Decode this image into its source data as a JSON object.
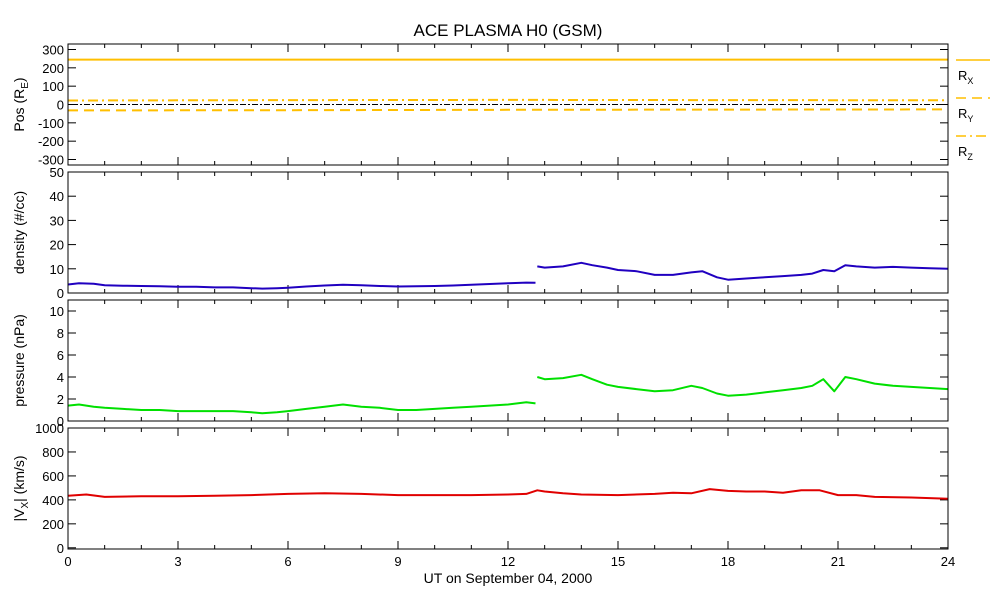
{
  "figure": {
    "title": "ACE PLASMA H0 (GSM)",
    "xlabel": "UT on September 04, 2000"
  },
  "chart_data": [
    {
      "type": "line",
      "panel": "position",
      "title": "ACE PLASMA H0 (GSM)",
      "ylabel": "Pos (R",
      "ylabel_sub": "E",
      "ylabel_tail": ")",
      "ylim": [
        -330,
        330
      ],
      "yticks": [
        -300,
        -200,
        -100,
        0,
        100,
        200,
        300
      ],
      "xlim": [
        0,
        24
      ],
      "zero_line": true,
      "series": [
        {
          "name": "R",
          "sub": "X",
          "color": "#ffbf00",
          "style": "solid",
          "x": [
            0,
            24
          ],
          "values": [
            245,
            245
          ]
        },
        {
          "name": "R",
          "sub": "Y",
          "color": "#ffbf00",
          "style": "dashed",
          "x": [
            0,
            6,
            12,
            18,
            24
          ],
          "values": [
            -32,
            -31,
            -29,
            -28,
            -27
          ]
        },
        {
          "name": "R",
          "sub": "Z",
          "color": "#ffbf00",
          "style": "dashdot",
          "x": [
            0,
            6,
            12,
            18,
            24
          ],
          "values": [
            22,
            24,
            25,
            24,
            23
          ]
        }
      ]
    },
    {
      "type": "line",
      "panel": "density",
      "ylabel": "density (#/cc)",
      "ylim": [
        0,
        50
      ],
      "yticks": [
        0,
        10,
        20,
        30,
        40,
        50
      ],
      "xlim": [
        0,
        24
      ],
      "series": [
        {
          "name": "density",
          "color": "#2000c0",
          "x": [
            0,
            0.3,
            0.7,
            1.0,
            1.5,
            2.0,
            2.5,
            3.0,
            3.5,
            4.0,
            4.5,
            5.0,
            5.3,
            5.7,
            6.0,
            6.5,
            7.0,
            7.5,
            8.0,
            8.5,
            9.0,
            9.5,
            10.0,
            10.5,
            11.0,
            11.5,
            12.0,
            12.5,
            12.75,
            12.8,
            13.0,
            13.5,
            14.0,
            14.3,
            14.7,
            15.0,
            15.5,
            16.0,
            16.5,
            17.0,
            17.3,
            17.7,
            18.0,
            18.5,
            19.0,
            19.5,
            20.0,
            20.3,
            20.6,
            20.9,
            21.2,
            21.5,
            22.0,
            22.5,
            23.0,
            23.5,
            24.0
          ],
          "values": [
            3.5,
            4.0,
            3.8,
            3.2,
            3.0,
            2.9,
            2.8,
            2.6,
            2.6,
            2.3,
            2.3,
            2.0,
            1.8,
            2.0,
            2.2,
            2.7,
            3.1,
            3.4,
            3.2,
            2.9,
            2.7,
            2.8,
            2.9,
            3.1,
            3.4,
            3.7,
            4.0,
            4.3,
            4.2,
            11.0,
            10.5,
            11.0,
            12.5,
            11.5,
            10.5,
            9.5,
            9.0,
            7.5,
            7.5,
            8.5,
            9.0,
            6.5,
            5.5,
            6.0,
            6.5,
            7.0,
            7.5,
            8.0,
            9.5,
            9.0,
            11.5,
            11.0,
            10.5,
            10.8,
            10.5,
            10.2,
            10.0
          ]
        }
      ]
    },
    {
      "type": "line",
      "panel": "pressure",
      "ylabel": "pressure (nPa)",
      "ylim": [
        0,
        11
      ],
      "yticks": [
        0,
        2,
        4,
        6,
        8,
        10
      ],
      "xlim": [
        0,
        24
      ],
      "series": [
        {
          "name": "pressure",
          "color": "#00e000",
          "x": [
            0,
            0.3,
            0.7,
            1.0,
            1.5,
            2.0,
            2.5,
            3.0,
            3.5,
            4.0,
            4.5,
            5.0,
            5.3,
            5.7,
            6.0,
            6.5,
            7.0,
            7.5,
            8.0,
            8.5,
            9.0,
            9.5,
            10.0,
            10.5,
            11.0,
            11.5,
            12.0,
            12.5,
            12.75,
            12.8,
            13.0,
            13.5,
            14.0,
            14.3,
            14.7,
            15.0,
            15.5,
            16.0,
            16.5,
            17.0,
            17.3,
            17.7,
            18.0,
            18.5,
            19.0,
            19.5,
            20.0,
            20.3,
            20.6,
            20.9,
            21.2,
            21.5,
            22.0,
            22.5,
            23.0,
            23.5,
            24.0
          ],
          "values": [
            1.4,
            1.5,
            1.3,
            1.2,
            1.1,
            1.0,
            1.0,
            0.9,
            0.9,
            0.9,
            0.9,
            0.8,
            0.7,
            0.8,
            0.9,
            1.1,
            1.3,
            1.5,
            1.3,
            1.2,
            1.0,
            1.0,
            1.1,
            1.2,
            1.3,
            1.4,
            1.5,
            1.7,
            1.6,
            4.0,
            3.8,
            3.9,
            4.2,
            3.8,
            3.3,
            3.1,
            2.9,
            2.7,
            2.8,
            3.2,
            3.0,
            2.5,
            2.3,
            2.4,
            2.6,
            2.8,
            3.0,
            3.2,
            3.8,
            2.7,
            4.0,
            3.8,
            3.4,
            3.2,
            3.1,
            3.0,
            2.9
          ]
        }
      ]
    },
    {
      "type": "line",
      "panel": "velocity",
      "ylabel": "|V",
      "ylabel_sub": "X",
      "ylabel_tail": "| (km/s)",
      "ylim": [
        -10,
        1000
      ],
      "yticks": [
        0,
        200,
        400,
        600,
        800,
        1000
      ],
      "xlim": [
        0,
        24
      ],
      "xticks": [
        0,
        3,
        6,
        9,
        12,
        15,
        18,
        21,
        24
      ],
      "series": [
        {
          "name": "|Vx|",
          "color": "#e00000",
          "x": [
            0,
            0.5,
            1.0,
            2.0,
            3.0,
            4.0,
            5.0,
            6.0,
            7.0,
            8.0,
            9.0,
            10.0,
            11.0,
            12.0,
            12.5,
            12.8,
            13.0,
            13.5,
            14.0,
            15.0,
            16.0,
            16.5,
            17.0,
            17.5,
            18.0,
            18.5,
            19.0,
            19.5,
            20.0,
            20.5,
            21.0,
            21.5,
            22.0,
            23.0,
            24.0
          ],
          "values": [
            435,
            445,
            425,
            430,
            430,
            435,
            440,
            450,
            455,
            450,
            440,
            440,
            440,
            445,
            450,
            480,
            470,
            455,
            445,
            440,
            450,
            460,
            455,
            490,
            475,
            470,
            470,
            460,
            480,
            480,
            440,
            440,
            425,
            420,
            410
          ]
        }
      ]
    }
  ]
}
